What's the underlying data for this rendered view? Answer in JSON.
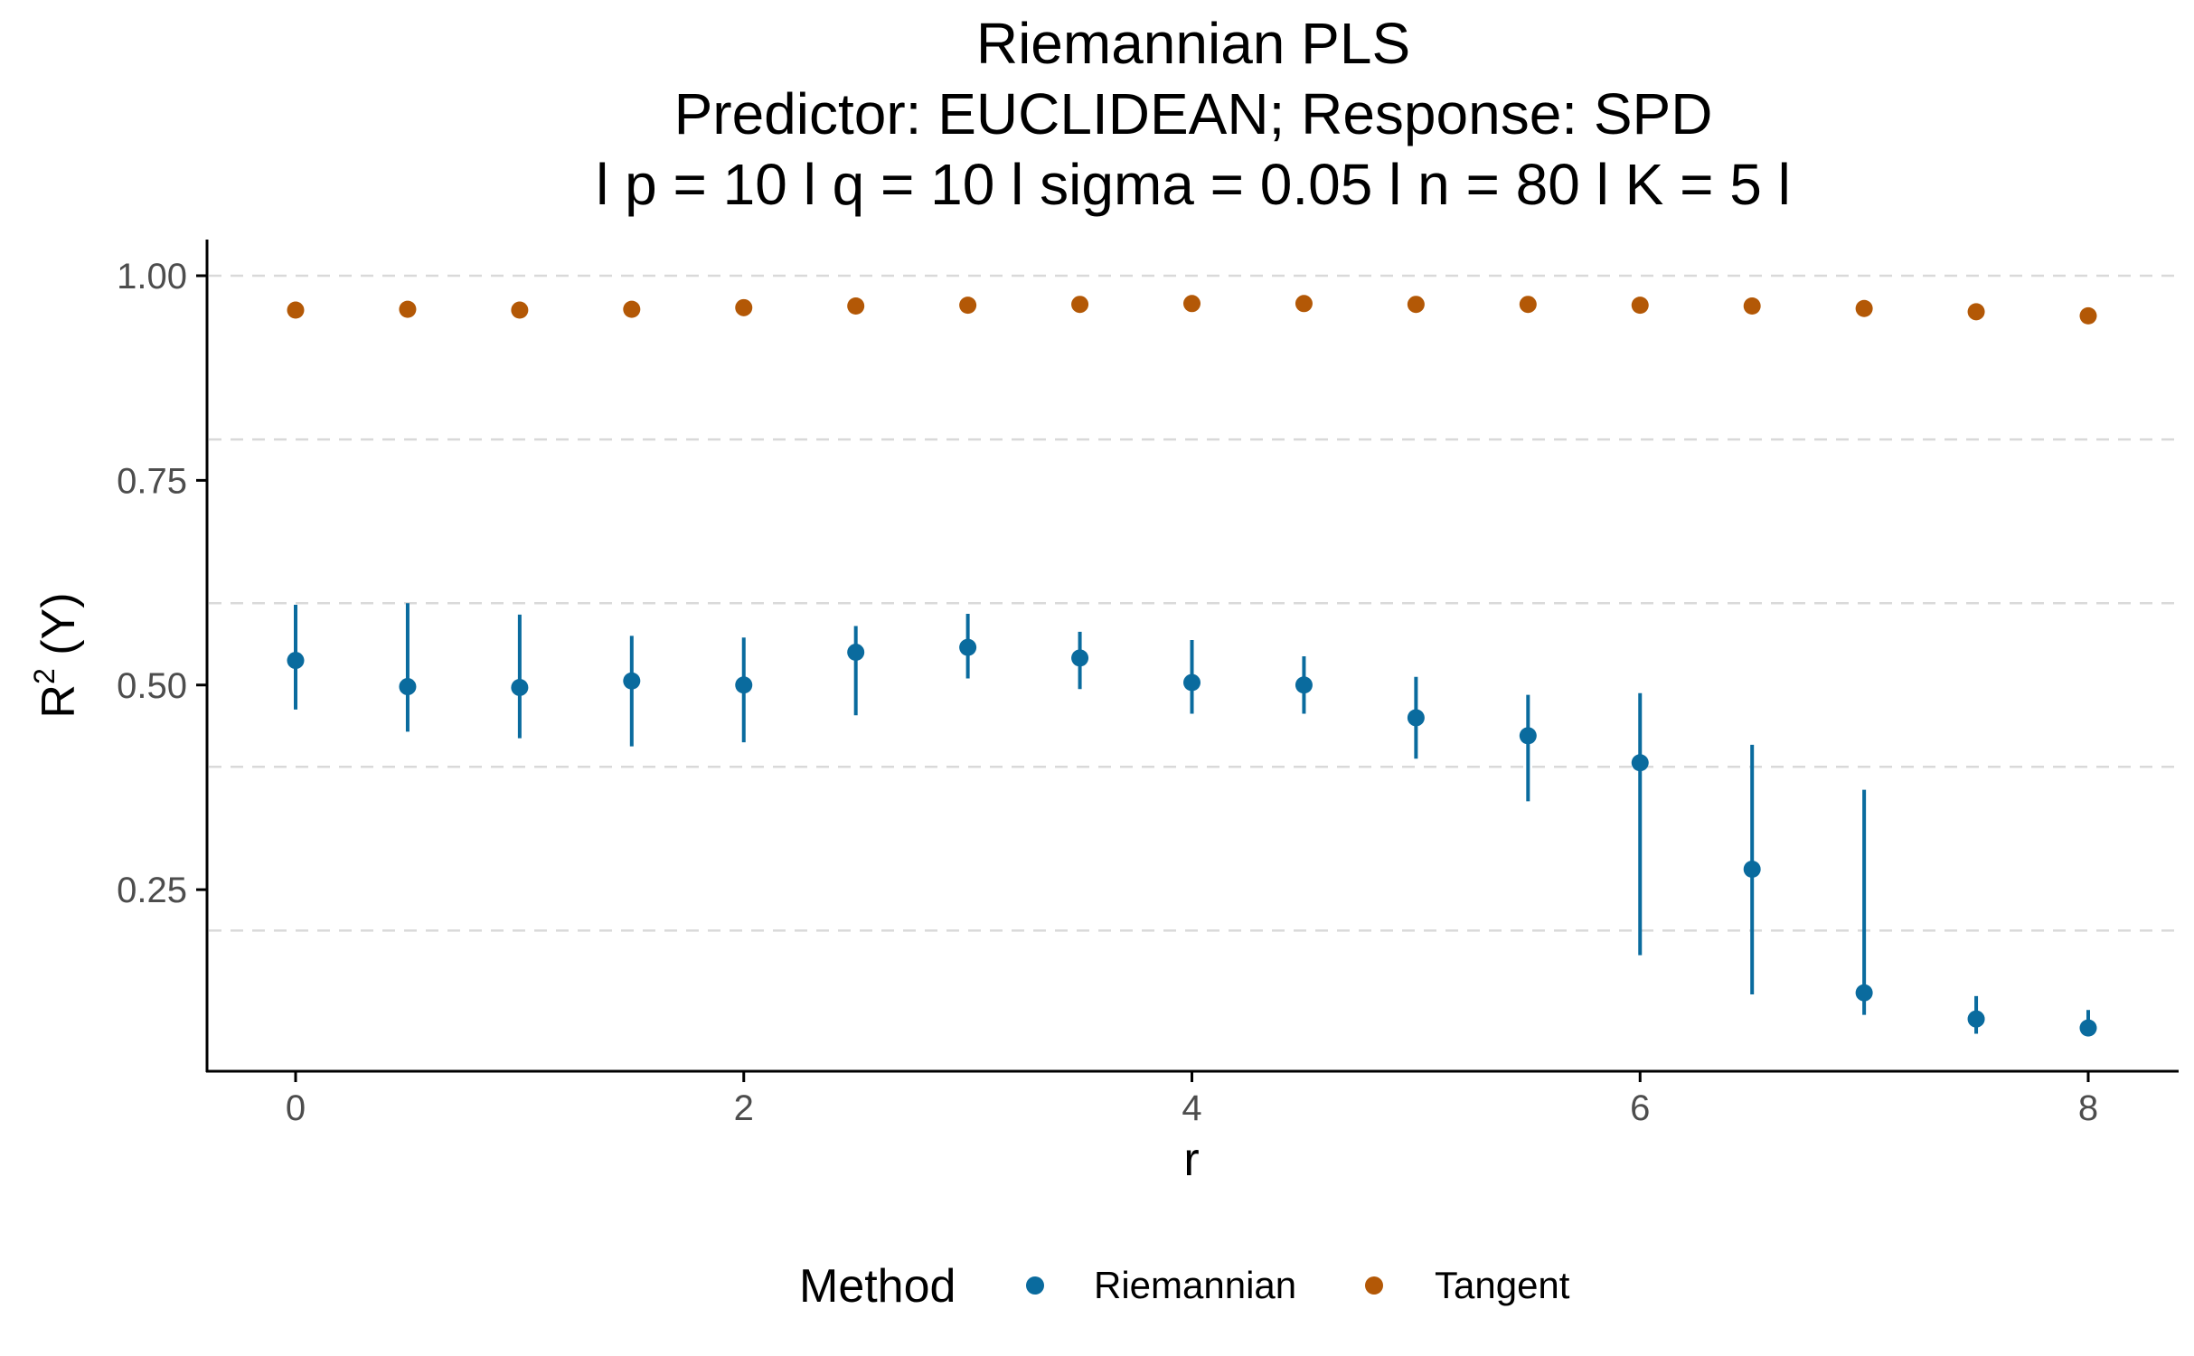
{
  "chart_data": {
    "type": "scatter",
    "title_lines": [
      "Riemannian PLS",
      "Predictor: EUCLIDEAN; Response: SPD",
      "l p = 10 l q = 10 l sigma = 0.05 l n = 80 l K = 5 l"
    ],
    "xlabel": "r",
    "ylabel": "R",
    "ylabel_sup": "2",
    "ylabel_suffix": " (Y)",
    "xlim": [
      -0.4,
      8.4
    ],
    "ylim": [
      0.0,
      1.045
    ],
    "x_ticks": [
      0,
      2,
      4,
      6,
      8
    ],
    "x_tick_labels": [
      "0",
      "2",
      "4",
      "6",
      "8"
    ],
    "y_ticks": [
      0.25,
      0.5,
      0.75,
      1.0
    ],
    "y_tick_labels": [
      "0.25",
      "0.50",
      "0.75",
      "1.00"
    ],
    "dashed_gridlines_y": [
      0.2,
      0.4,
      0.6,
      0.8,
      1.0
    ],
    "legend": {
      "title": "Method",
      "position": "bottom"
    },
    "series": [
      {
        "name": "Riemannian",
        "color": "#0a6b9e",
        "x": [
          0,
          0.5,
          1,
          1.5,
          2,
          2.5,
          3,
          3.5,
          4,
          4.5,
          5,
          5.5,
          6,
          6.5,
          7,
          7.5,
          8
        ],
        "y": [
          0.53,
          0.498,
          0.497,
          0.505,
          0.5,
          0.54,
          0.546,
          0.533,
          0.503,
          0.5,
          0.46,
          0.438,
          0.405,
          0.275,
          0.124,
          0.092,
          0.081
        ],
        "ymin": [
          0.47,
          0.443,
          0.435,
          0.425,
          0.43,
          0.463,
          0.508,
          0.495,
          0.465,
          0.465,
          0.41,
          0.358,
          0.17,
          0.122,
          0.097,
          0.074,
          0.071
        ],
        "ymax": [
          0.598,
          0.6,
          0.586,
          0.56,
          0.558,
          0.572,
          0.587,
          0.565,
          0.555,
          0.535,
          0.51,
          0.488,
          0.49,
          0.427,
          0.372,
          0.12,
          0.103
        ]
      },
      {
        "name": "Tangent",
        "color": "#b35806",
        "x": [
          0,
          0.5,
          1,
          1.5,
          2,
          2.5,
          3,
          3.5,
          4,
          4.5,
          5,
          5.5,
          6,
          6.5,
          7,
          7.5,
          8
        ],
        "y": [
          0.958,
          0.959,
          0.958,
          0.959,
          0.961,
          0.963,
          0.964,
          0.965,
          0.966,
          0.966,
          0.965,
          0.965,
          0.964,
          0.963,
          0.96,
          0.956,
          0.951
        ]
      }
    ]
  }
}
